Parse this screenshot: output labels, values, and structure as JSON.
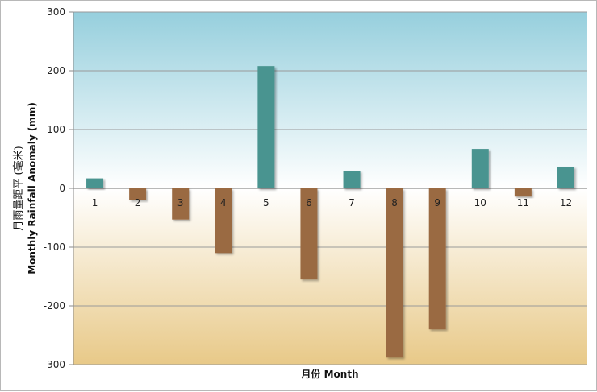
{
  "chart_data": {
    "type": "bar",
    "categories": [
      "1",
      "2",
      "3",
      "4",
      "5",
      "6",
      "7",
      "8",
      "9",
      "10",
      "11",
      "12"
    ],
    "values": [
      17,
      -20,
      -53,
      -110,
      208,
      -155,
      30,
      -288,
      -240,
      67,
      -14,
      37
    ],
    "title": "",
    "xlabel": "月份 Month",
    "ylabel_zh": "月雨量距平 (毫米)",
    "ylabel": "Monthly Rainfall Anomaly (mm)",
    "ylim": [
      -300,
      300
    ],
    "yticks": [
      -300,
      -200,
      -100,
      0,
      100,
      200,
      300
    ],
    "grid": true,
    "legend": "none",
    "colors": {
      "positive": "#4a9490",
      "negative": "#9a6a42",
      "background_top": "#96cfdd",
      "background_mid": "#ffffff",
      "background_bottom": "#e8c988"
    }
  }
}
